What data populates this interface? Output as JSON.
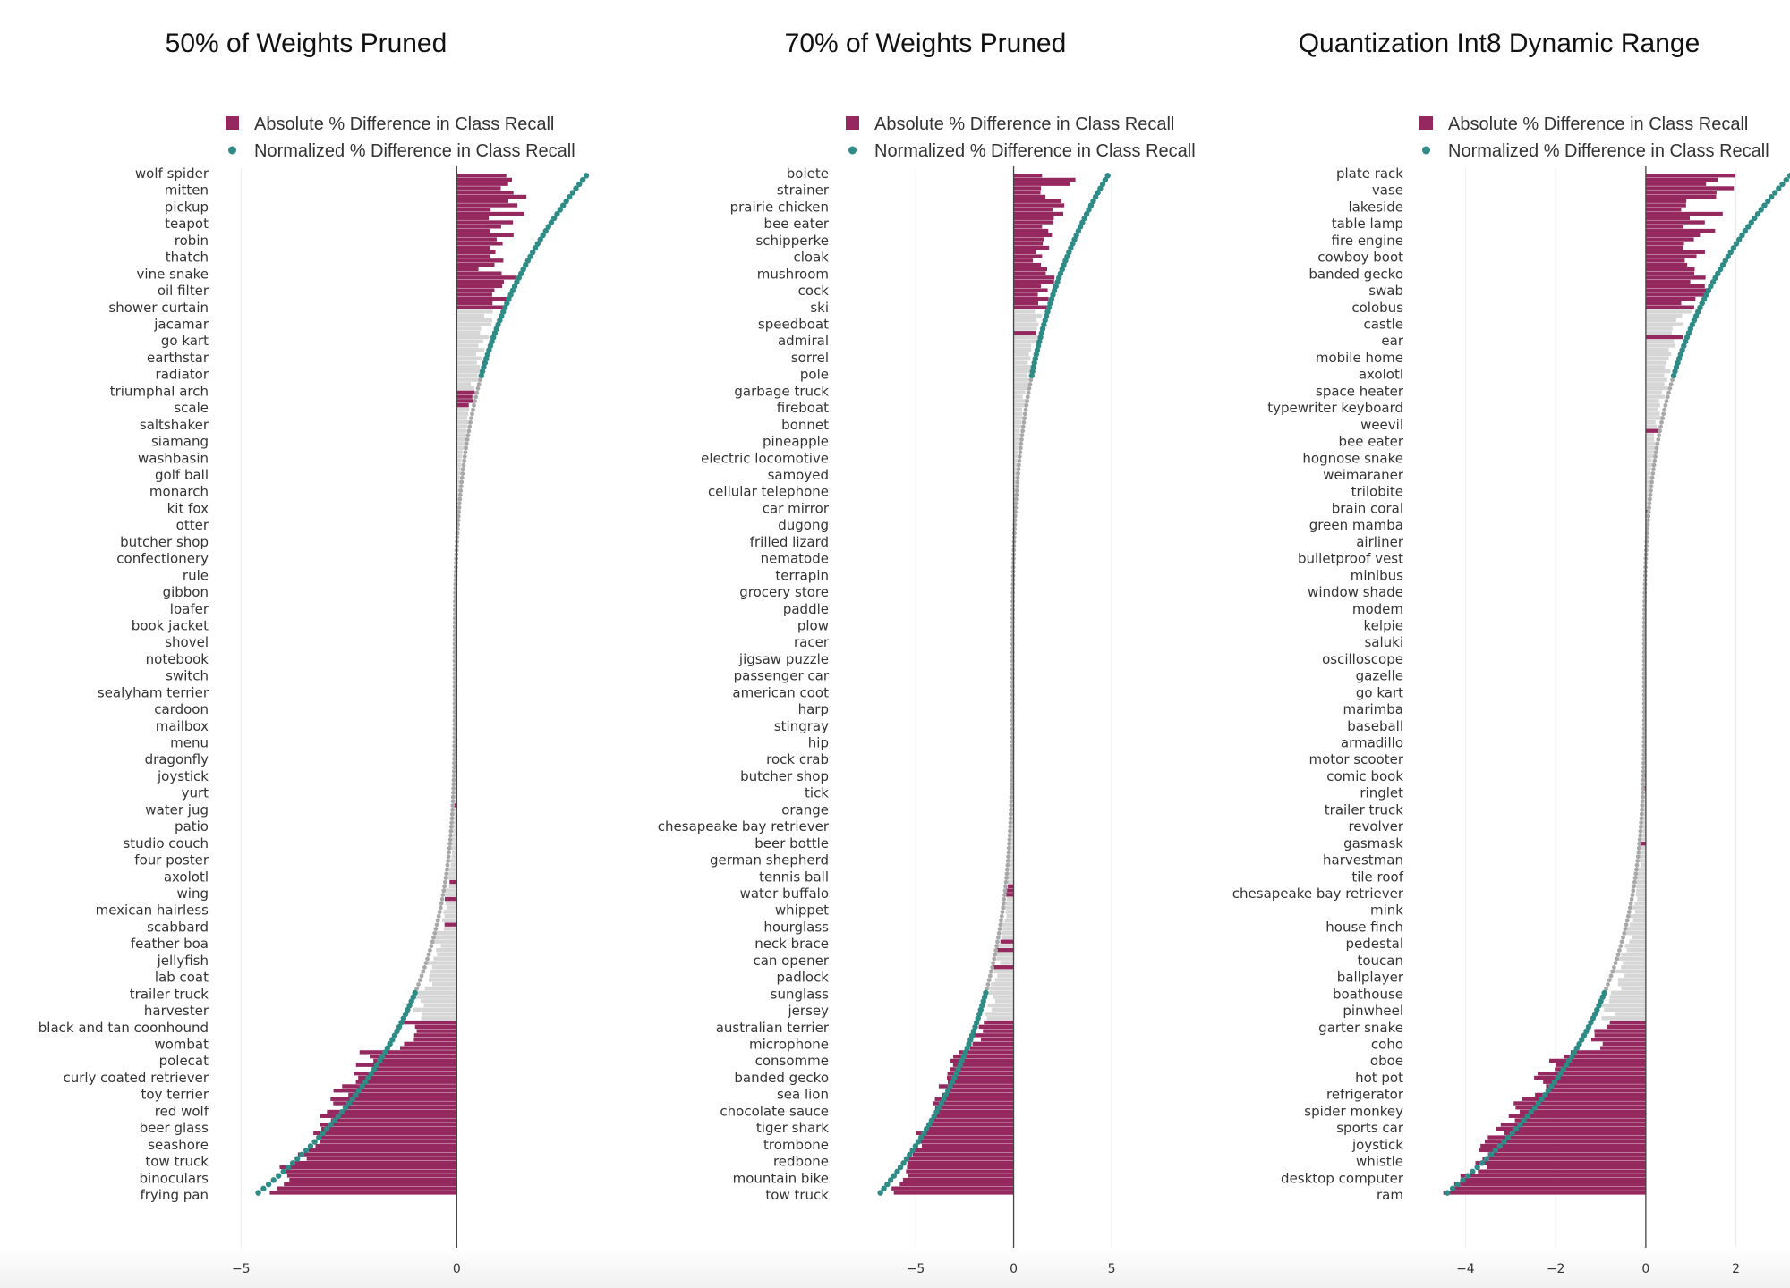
{
  "colors": {
    "absolute": "#95295f",
    "normalized": "#2e8b86",
    "neutral_bar": "#d6d6d6",
    "neutral_dot": "#a8a8a8",
    "grid": "#ececec",
    "zero_line": "#444444"
  },
  "chart_data": [
    {
      "type": "bar",
      "title": "50% of Weights Pruned",
      "legend": [
        "Absolute % Difference in Class Recall",
        "Normalized % Difference in Class Recall"
      ],
      "legend_position": "top",
      "grid": true,
      "xlim": [
        -5.4,
        3.0
      ],
      "xticks": [
        -5,
        0
      ],
      "xtick_labels": [
        "−5",
        "0"
      ],
      "categories": [
        "wolf spider",
        "mitten",
        "pickup",
        "teapot",
        "robin",
        "thatch",
        "vine snake",
        "oil filter",
        "shower curtain",
        "jacamar",
        "go kart",
        "earthstar",
        "radiator",
        "triumphal arch",
        "scale",
        "saltshaker",
        "siamang",
        "washbasin",
        "golf ball",
        "monarch",
        "kit fox",
        "otter",
        "butcher shop",
        "confectionery",
        "rule",
        "gibbon",
        "loafer",
        "book jacket",
        "shovel",
        "notebook",
        "switch",
        "sealyham terrier",
        "cardoon",
        "mailbox",
        "menu",
        "dragonfly",
        "joystick",
        "yurt",
        "water jug",
        "patio",
        "studio couch",
        "four poster",
        "axolotl",
        "wing",
        "mexican hairless",
        "scabbard",
        "feather boa",
        "jellyfish",
        "lab coat",
        "trailer truck",
        "harvester",
        "black and tan coonhound",
        "wombat",
        "polecat",
        "curly coated retriever",
        "toy terrier",
        "red wolf",
        "beer glass",
        "seashore",
        "tow truck",
        "binoculars",
        "frying pan"
      ],
      "series": [
        {
          "name": "Absolute % Difference in Class Recall",
          "range": [
            -5.5,
            2.0
          ]
        },
        {
          "name": "Normalized % Difference in Class Recall",
          "range": [
            -4.6,
            3.0
          ]
        }
      ]
    },
    {
      "type": "bar",
      "title": "70% of Weights Pruned",
      "legend": [
        "Absolute % Difference in Class Recall",
        "Normalized % Difference in Class Recall"
      ],
      "legend_position": "top",
      "grid": true,
      "xlim": [
        -8.7,
        5.5
      ],
      "xticks": [
        -5,
        0,
        5
      ],
      "xtick_labels": [
        "−5",
        "0",
        "5"
      ],
      "categories": [
        "bolete",
        "strainer",
        "prairie chicken",
        "bee eater",
        "schipperke",
        "cloak",
        "mushroom",
        "cock",
        "ski",
        "speedboat",
        "admiral",
        "sorrel",
        "pole",
        "garbage truck",
        "fireboat",
        "bonnet",
        "pineapple",
        "electric locomotive",
        "samoyed",
        "cellular telephone",
        "car mirror",
        "dugong",
        "frilled lizard",
        "nematode",
        "terrapin",
        "grocery store",
        "paddle",
        "plow",
        "racer",
        "jigsaw puzzle",
        "passenger car",
        "american coot",
        "harp",
        "stingray",
        "hip",
        "rock crab",
        "butcher shop",
        "tick",
        "orange",
        "chesapeake bay retriever",
        "beer bottle",
        "german shepherd",
        "tennis ball",
        "water buffalo",
        "whippet",
        "hourglass",
        "neck brace",
        "can opener",
        "padlock",
        "sunglass",
        "jersey",
        "australian terrier",
        "microphone",
        "consomme",
        "banded gecko",
        "sea lion",
        "chocolate sauce",
        "tiger shark",
        "trombone",
        "redbone",
        "mountain bike",
        "tow truck"
      ],
      "series": [
        {
          "name": "Absolute % Difference in Class Recall",
          "range": [
            -8.6,
            2.8
          ]
        },
        {
          "name": "Normalized % Difference in Class Recall",
          "range": [
            -6.8,
            4.8
          ]
        }
      ]
    },
    {
      "type": "bar",
      "title": "Quantization Int8 Dynamic Range",
      "legend": [
        "Absolute % Difference in Class Recall",
        "Normalized % Difference in Class Recall"
      ],
      "legend_position": "top",
      "grid": true,
      "xlim": [
        -5.1,
        3.0
      ],
      "xticks": [
        -4,
        -2,
        0,
        2
      ],
      "xtick_labels": [
        "−4",
        "−2",
        "0",
        "2"
      ],
      "categories": [
        "plate rack",
        "vase",
        "lakeside",
        "table lamp",
        "fire engine",
        "cowboy boot",
        "banded gecko",
        "swab",
        "colobus",
        "castle",
        "ear",
        "mobile home",
        "axolotl",
        "space heater",
        "typewriter keyboard",
        "weevil",
        "bee eater",
        "hognose snake",
        "weimaraner",
        "trilobite",
        "brain coral",
        "green mamba",
        "airliner",
        "bulletproof vest",
        "minibus",
        "window shade",
        "modem",
        "kelpie",
        "saluki",
        "oscilloscope",
        "gazelle",
        "go kart",
        "marimba",
        "baseball",
        "armadillo",
        "motor scooter",
        "comic book",
        "ringlet",
        "trailer truck",
        "revolver",
        "gasmask",
        "harvestman",
        "tile roof",
        "chesapeake bay retriever",
        "mink",
        "house finch",
        "pedestal",
        "toucan",
        "ballplayer",
        "boathouse",
        "pinwheel",
        "garter snake",
        "coho",
        "oboe",
        "hot pot",
        "refrigerator",
        "spider monkey",
        "sports car",
        "joystick",
        "whistle",
        "desktop computer",
        "ram"
      ],
      "series": [
        {
          "name": "Absolute % Difference in Class Recall",
          "range": [
            -5.1,
            2.2
          ]
        },
        {
          "name": "Normalized % Difference in Class Recall",
          "range": [
            -4.4,
            3.2
          ]
        }
      ]
    }
  ]
}
